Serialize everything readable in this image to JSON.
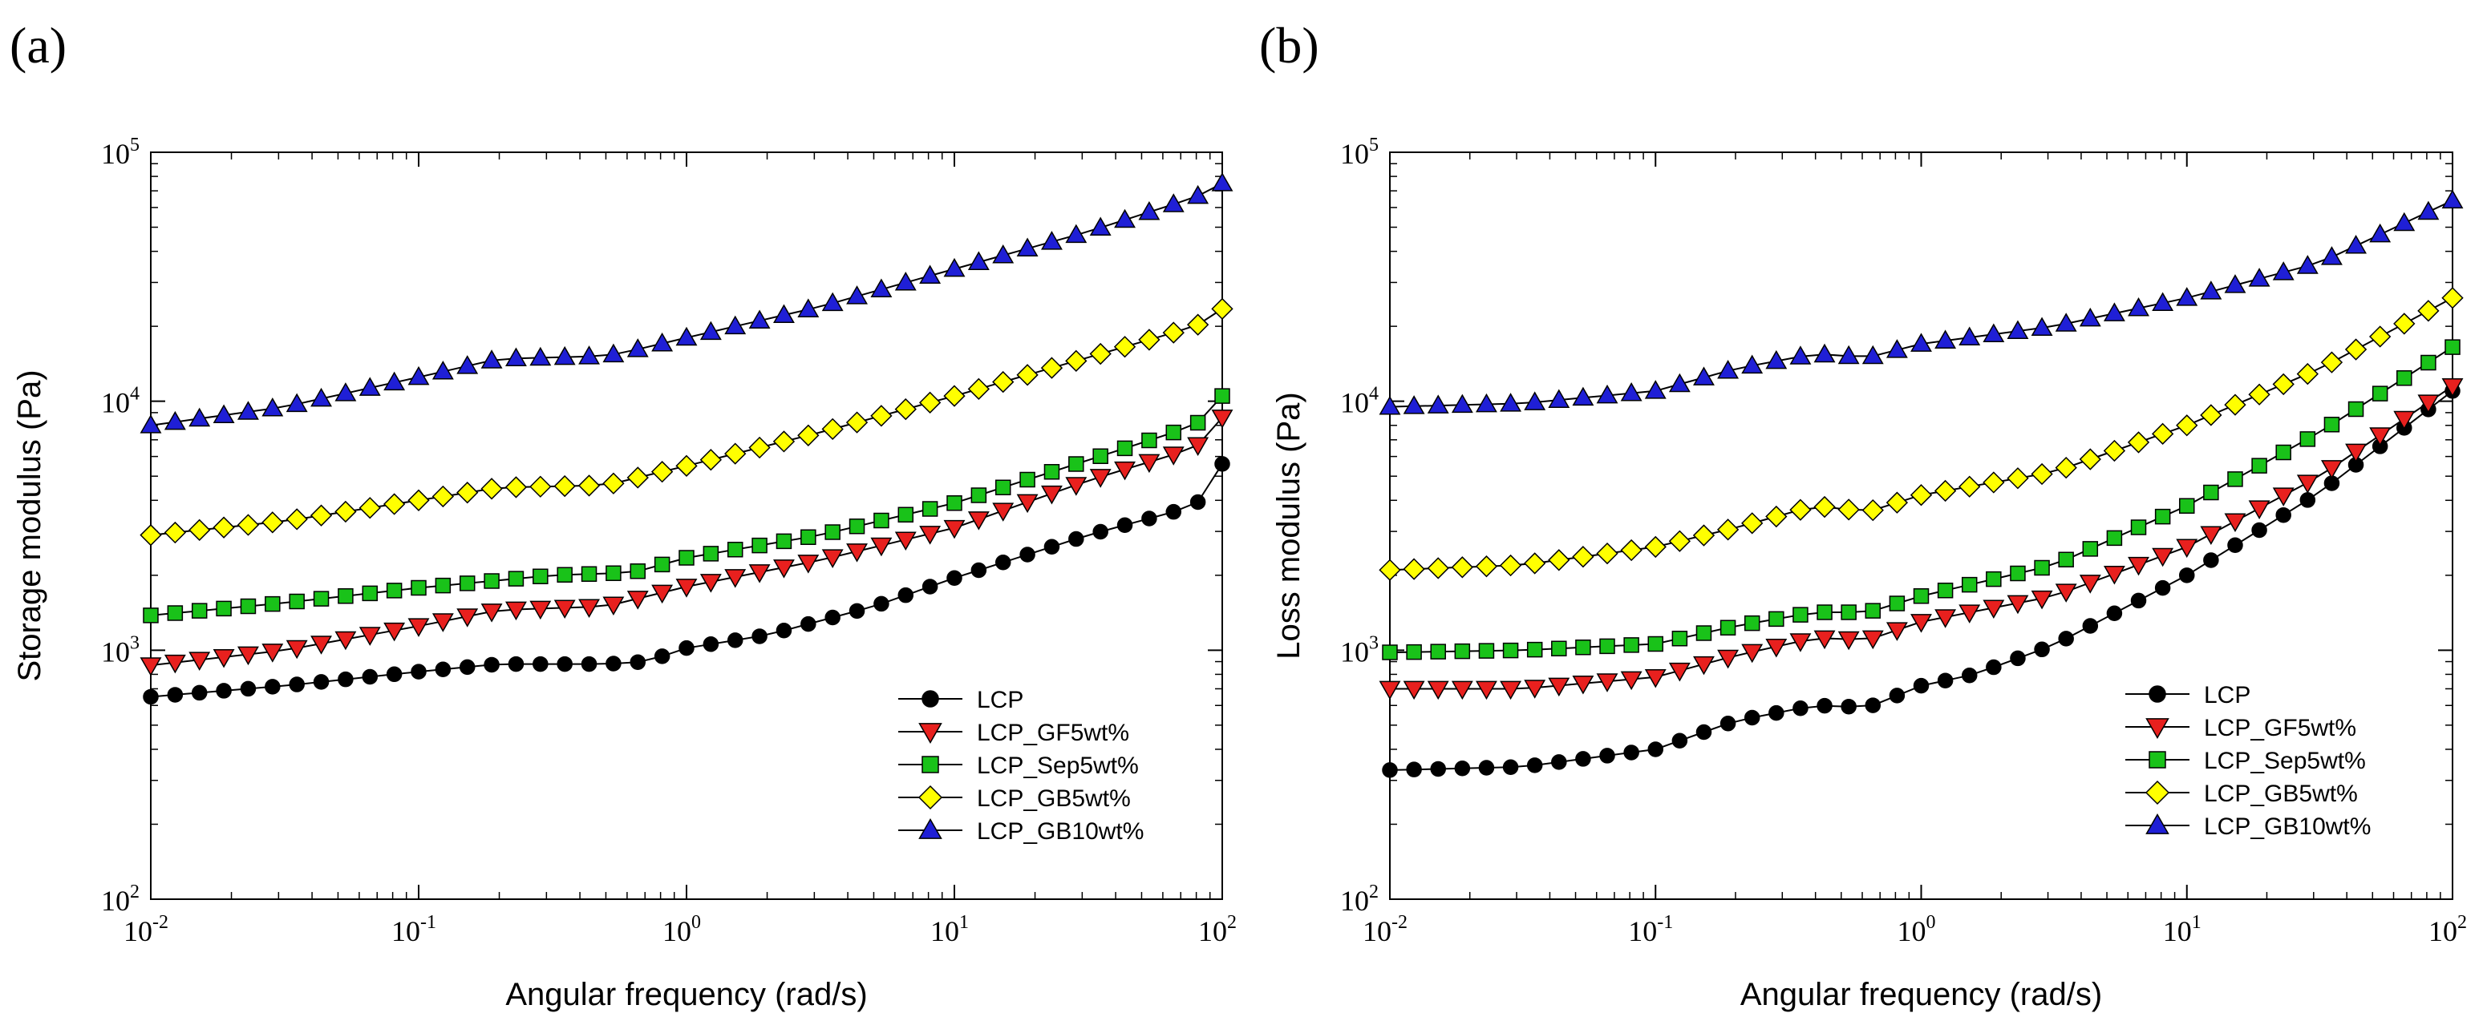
{
  "chart_data": [
    {
      "type": "line",
      "panel_label": "(a)",
      "xlabel": "Angular frequency (rad/s)",
      "ylabel": "Storage modulus (Pa)",
      "xscale": "log",
      "yscale": "log",
      "xlim": [
        0.01,
        100
      ],
      "ylim": [
        100,
        100000
      ],
      "x_ticks": [
        {
          "base": "10",
          "exp": "-2"
        },
        {
          "base": "10",
          "exp": "-1"
        },
        {
          "base": "10",
          "exp": "0"
        },
        {
          "base": "10",
          "exp": "1"
        },
        {
          "base": "10",
          "exp": "2"
        }
      ],
      "y_ticks": [
        {
          "base": "10",
          "exp": "2"
        },
        {
          "base": "10",
          "exp": "3"
        },
        {
          "base": "10",
          "exp": "4"
        },
        {
          "base": "10",
          "exp": "5"
        }
      ],
      "legend_position": "lower-right",
      "series": [
        {
          "name": "LCP",
          "marker": "circle",
          "color": "#000000",
          "points": [
            [
              -2,
              650
            ],
            [
              -1.5,
              720
            ],
            [
              -1,
              820
            ],
            [
              -0.7,
              880
            ],
            [
              -0.3,
              880
            ],
            [
              -0.15,
              900
            ],
            [
              0,
              1020
            ],
            [
              0.3,
              1150
            ],
            [
              0.7,
              1500
            ],
            [
              1,
              1950
            ],
            [
              1.5,
              2900
            ],
            [
              1.9,
              3800
            ],
            [
              2,
              5600
            ]
          ]
        },
        {
          "name": "LCP_GF5wt%",
          "marker": "triangle-down",
          "color": "#e8201e",
          "points": [
            [
              -2,
              870
            ],
            [
              -1.5,
              1000
            ],
            [
              -1,
              1250
            ],
            [
              -0.7,
              1450
            ],
            [
              -0.3,
              1500
            ],
            [
              0,
              1800
            ],
            [
              0.5,
              2300
            ],
            [
              1,
              3100
            ],
            [
              1.5,
              4800
            ],
            [
              1.9,
              6500
            ],
            [
              2,
              8600
            ]
          ]
        },
        {
          "name": "LCP_Sep5wt%",
          "marker": "square",
          "color": "#19c219",
          "points": [
            [
              -2,
              1380
            ],
            [
              -1.5,
              1550
            ],
            [
              -1,
              1780
            ],
            [
              -0.5,
              2000
            ],
            [
              -0.2,
              2050
            ],
            [
              0,
              2350
            ],
            [
              0.5,
              2900
            ],
            [
              1,
              3900
            ],
            [
              1.5,
              5800
            ],
            [
              1.9,
              8000
            ],
            [
              2,
              10500
            ]
          ]
        },
        {
          "name": "LCP_GB5wt%",
          "marker": "diamond",
          "color": "#ffff00",
          "points": [
            [
              -2,
              2900
            ],
            [
              -1.5,
              3300
            ],
            [
              -1,
              4000
            ],
            [
              -0.7,
              4500
            ],
            [
              -0.3,
              4600
            ],
            [
              0,
              5500
            ],
            [
              0.5,
              7500
            ],
            [
              1,
              10500
            ],
            [
              1.5,
              15000
            ],
            [
              1.9,
              20000
            ],
            [
              2,
              23500
            ]
          ]
        },
        {
          "name": "LCP_GB10wt%",
          "marker": "triangle-up",
          "color": "#1f1fd6",
          "points": [
            [
              -2,
              8000
            ],
            [
              -1.5,
              9500
            ],
            [
              -1,
              12500
            ],
            [
              -0.7,
              14800
            ],
            [
              -0.3,
              15200
            ],
            [
              -0.2,
              16000
            ],
            [
              0,
              18000
            ],
            [
              0.5,
              24000
            ],
            [
              1,
              34000
            ],
            [
              1.5,
              48000
            ],
            [
              1.9,
              66000
            ],
            [
              2,
              75000
            ]
          ]
        }
      ]
    },
    {
      "type": "line",
      "panel_label": "(b)",
      "xlabel": "Angular frequency (rad/s)",
      "ylabel": "Loss modulus (Pa)",
      "xscale": "log",
      "yscale": "log",
      "xlim": [
        0.01,
        100
      ],
      "ylim": [
        100,
        100000
      ],
      "x_ticks": [
        {
          "base": "10",
          "exp": "-2"
        },
        {
          "base": "10",
          "exp": "-1"
        },
        {
          "base": "10",
          "exp": "0"
        },
        {
          "base": "10",
          "exp": "1"
        },
        {
          "base": "10",
          "exp": "2"
        }
      ],
      "y_ticks": [
        {
          "base": "10",
          "exp": "2"
        },
        {
          "base": "10",
          "exp": "3"
        },
        {
          "base": "10",
          "exp": "4"
        },
        {
          "base": "10",
          "exp": "5"
        }
      ],
      "legend_position": "lower-right",
      "series": [
        {
          "name": "LCP",
          "marker": "circle",
          "color": "#000000",
          "points": [
            [
              -2,
              330
            ],
            [
              -1.5,
              340
            ],
            [
              -1,
              400
            ],
            [
              -0.7,
              520
            ],
            [
              -0.4,
              600
            ],
            [
              -0.2,
              590
            ],
            [
              0,
              720
            ],
            [
              0.2,
              800
            ],
            [
              0.5,
              1050
            ],
            [
              1,
              2000
            ],
            [
              1.5,
              4300
            ],
            [
              2,
              11000
            ]
          ]
        },
        {
          "name": "LCP_GF5wt%",
          "marker": "triangle-down",
          "color": "#e8201e",
          "points": [
            [
              -2,
              700
            ],
            [
              -1.5,
              700
            ],
            [
              -1,
              780
            ],
            [
              -0.7,
              950
            ],
            [
              -0.4,
              1120
            ],
            [
              -0.2,
              1100
            ],
            [
              0,
              1300
            ],
            [
              0.5,
              1650
            ],
            [
              1,
              2600
            ],
            [
              1.5,
              5000
            ],
            [
              2,
              11500
            ]
          ]
        },
        {
          "name": "LCP_Sep5wt%",
          "marker": "square",
          "color": "#19c219",
          "points": [
            [
              -2,
              980
            ],
            [
              -1.5,
              1000
            ],
            [
              -1,
              1060
            ],
            [
              -0.7,
              1250
            ],
            [
              -0.4,
              1420
            ],
            [
              -0.2,
              1420
            ],
            [
              0,
              1650
            ],
            [
              0.5,
              2200
            ],
            [
              1,
              3800
            ],
            [
              1.5,
              7500
            ],
            [
              2,
              16500
            ]
          ]
        },
        {
          "name": "LCP_GB5wt%",
          "marker": "diamond",
          "color": "#ffff00",
          "points": [
            [
              -2,
              2100
            ],
            [
              -1.5,
              2200
            ],
            [
              -1,
              2600
            ],
            [
              -0.7,
              3100
            ],
            [
              -0.4,
              3800
            ],
            [
              -0.2,
              3600
            ],
            [
              0,
              4200
            ],
            [
              0.5,
              5200
            ],
            [
              1,
              8000
            ],
            [
              1.5,
              13500
            ],
            [
              2,
              26000
            ]
          ]
        },
        {
          "name": "LCP_GB10wt%",
          "marker": "triangle-up",
          "color": "#1f1fd6",
          "points": [
            [
              -2,
              9500
            ],
            [
              -1.5,
              9800
            ],
            [
              -1,
              11000
            ],
            [
              -0.7,
              13500
            ],
            [
              -0.4,
              15500
            ],
            [
              -0.2,
              15000
            ],
            [
              0,
              17000
            ],
            [
              0.5,
              20000
            ],
            [
              1,
              26000
            ],
            [
              1.5,
              36000
            ],
            [
              2,
              64000
            ]
          ]
        }
      ]
    }
  ]
}
